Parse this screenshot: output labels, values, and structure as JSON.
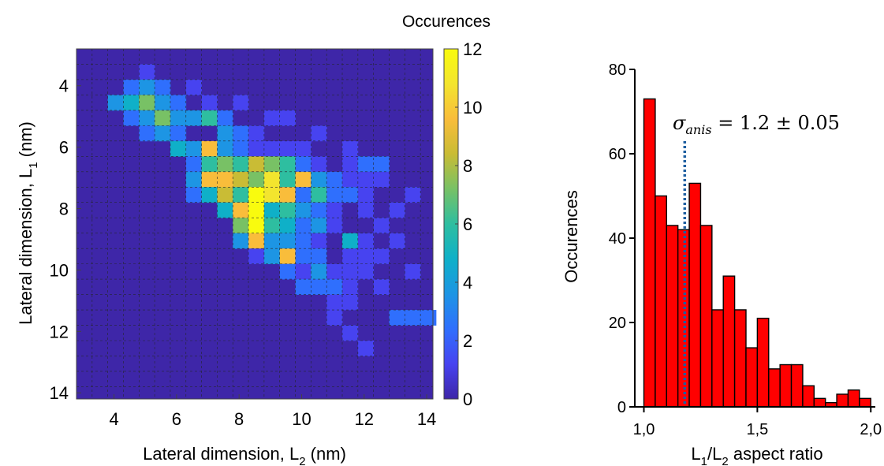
{
  "chart_data": [
    {
      "type": "heatmap",
      "xlabel": "Lateral dimension, L",
      "xlabel_sub": "2",
      "xlabel_unit": " (nm)",
      "ylabel": "Lateral dimension, L",
      "ylabel_sub": "1",
      "ylabel_unit": " (nm)",
      "xlim": [
        2.8,
        14.2
      ],
      "ylim": [
        2.8,
        14.2
      ],
      "y_inverted": true,
      "grid": true,
      "bin_width": 0.5,
      "bin_start": 2.8,
      "xticks": [
        4,
        6,
        8,
        10,
        12,
        14
      ],
      "yticks": [
        4,
        6,
        8,
        10,
        12,
        14
      ],
      "colorbar": {
        "title": "Occurences",
        "range": [
          0,
          12
        ],
        "ticks": [
          0,
          2,
          4,
          6,
          8,
          10,
          12
        ],
        "colormap": [
          "#3e26a8",
          "#4743f0",
          "#2f6ffd",
          "#1d95e4",
          "#0fb0c8",
          "#2ebea0",
          "#78c165",
          "#c9bc35",
          "#f9bd3b",
          "#f3e52e",
          "#f9fb0e"
        ]
      },
      "background_value": 0,
      "cells": [
        {
          "x": 4.8,
          "y": 3.3,
          "v": 1
        },
        {
          "x": 4.3,
          "y": 3.8,
          "v": 2
        },
        {
          "x": 4.8,
          "y": 3.8,
          "v": 3
        },
        {
          "x": 5.3,
          "y": 3.8,
          "v": 2
        },
        {
          "x": 6.3,
          "y": 3.8,
          "v": 1
        },
        {
          "x": 3.8,
          "y": 4.3,
          "v": 3
        },
        {
          "x": 4.3,
          "y": 4.3,
          "v": 5
        },
        {
          "x": 4.8,
          "y": 4.3,
          "v": 7
        },
        {
          "x": 5.3,
          "y": 4.3,
          "v": 4
        },
        {
          "x": 5.8,
          "y": 4.3,
          "v": 2
        },
        {
          "x": 6.8,
          "y": 4.3,
          "v": 1
        },
        {
          "x": 7.8,
          "y": 4.3,
          "v": 1
        },
        {
          "x": 4.3,
          "y": 4.8,
          "v": 2
        },
        {
          "x": 4.8,
          "y": 4.8,
          "v": 4
        },
        {
          "x": 5.3,
          "y": 4.8,
          "v": 7
        },
        {
          "x": 5.8,
          "y": 4.8,
          "v": 3
        },
        {
          "x": 6.3,
          "y": 4.8,
          "v": 4
        },
        {
          "x": 6.8,
          "y": 4.8,
          "v": 6
        },
        {
          "x": 7.3,
          "y": 4.8,
          "v": 2
        },
        {
          "x": 8.8,
          "y": 4.8,
          "v": 1
        },
        {
          "x": 9.3,
          "y": 4.8,
          "v": 1
        },
        {
          "x": 4.8,
          "y": 5.3,
          "v": 2
        },
        {
          "x": 5.3,
          "y": 5.3,
          "v": 3
        },
        {
          "x": 5.8,
          "y": 5.3,
          "v": 2
        },
        {
          "x": 7.3,
          "y": 5.3,
          "v": 3
        },
        {
          "x": 7.8,
          "y": 5.3,
          "v": 2
        },
        {
          "x": 8.3,
          "y": 5.3,
          "v": 1
        },
        {
          "x": 10.3,
          "y": 5.3,
          "v": 1
        },
        {
          "x": 5.8,
          "y": 5.8,
          "v": 5
        },
        {
          "x": 6.3,
          "y": 5.8,
          "v": 3
        },
        {
          "x": 6.8,
          "y": 5.8,
          "v": 9
        },
        {
          "x": 7.3,
          "y": 5.8,
          "v": 3
        },
        {
          "x": 7.8,
          "y": 5.8,
          "v": 2
        },
        {
          "x": 8.3,
          "y": 5.8,
          "v": 1
        },
        {
          "x": 8.8,
          "y": 5.8,
          "v": 1
        },
        {
          "x": 9.3,
          "y": 5.8,
          "v": 1
        },
        {
          "x": 9.8,
          "y": 5.8,
          "v": 1
        },
        {
          "x": 11.3,
          "y": 5.8,
          "v": 1
        },
        {
          "x": 6.3,
          "y": 6.3,
          "v": 2
        },
        {
          "x": 6.8,
          "y": 6.3,
          "v": 6
        },
        {
          "x": 7.3,
          "y": 6.3,
          "v": 7
        },
        {
          "x": 7.8,
          "y": 6.3,
          "v": 6
        },
        {
          "x": 8.3,
          "y": 6.3,
          "v": 8
        },
        {
          "x": 8.8,
          "y": 6.3,
          "v": 7
        },
        {
          "x": 9.3,
          "y": 6.3,
          "v": 6
        },
        {
          "x": 9.8,
          "y": 6.3,
          "v": 2
        },
        {
          "x": 10.3,
          "y": 6.3,
          "v": 1
        },
        {
          "x": 11.3,
          "y": 6.3,
          "v": 1
        },
        {
          "x": 11.8,
          "y": 6.3,
          "v": 2
        },
        {
          "x": 12.3,
          "y": 6.3,
          "v": 2
        },
        {
          "x": 6.3,
          "y": 6.8,
          "v": 3
        },
        {
          "x": 6.8,
          "y": 6.8,
          "v": 10
        },
        {
          "x": 7.3,
          "y": 6.8,
          "v": 9
        },
        {
          "x": 7.8,
          "y": 6.8,
          "v": 8
        },
        {
          "x": 8.3,
          "y": 6.8,
          "v": 7
        },
        {
          "x": 8.8,
          "y": 6.8,
          "v": 11
        },
        {
          "x": 9.3,
          "y": 6.8,
          "v": 6
        },
        {
          "x": 9.8,
          "y": 6.8,
          "v": 10
        },
        {
          "x": 10.3,
          "y": 6.8,
          "v": 4
        },
        {
          "x": 10.8,
          "y": 6.8,
          "v": 2
        },
        {
          "x": 11.3,
          "y": 6.8,
          "v": 1
        },
        {
          "x": 11.8,
          "y": 6.8,
          "v": 1
        },
        {
          "x": 12.3,
          "y": 6.8,
          "v": 1
        },
        {
          "x": 6.3,
          "y": 7.3,
          "v": 2
        },
        {
          "x": 6.8,
          "y": 7.3,
          "v": 5
        },
        {
          "x": 7.3,
          "y": 7.3,
          "v": 8
        },
        {
          "x": 7.8,
          "y": 7.3,
          "v": 6
        },
        {
          "x": 8.3,
          "y": 7.3,
          "v": 12
        },
        {
          "x": 8.8,
          "y": 7.3,
          "v": 11
        },
        {
          "x": 9.3,
          "y": 7.3,
          "v": 9
        },
        {
          "x": 9.8,
          "y": 7.3,
          "v": 2
        },
        {
          "x": 10.3,
          "y": 7.3,
          "v": 6
        },
        {
          "x": 10.8,
          "y": 7.3,
          "v": 2
        },
        {
          "x": 11.3,
          "y": 7.3,
          "v": 2
        },
        {
          "x": 11.8,
          "y": 7.3,
          "v": 1
        },
        {
          "x": 13.3,
          "y": 7.3,
          "v": 1
        },
        {
          "x": 7.3,
          "y": 7.8,
          "v": 5
        },
        {
          "x": 7.8,
          "y": 7.8,
          "v": 9
        },
        {
          "x": 8.3,
          "y": 7.8,
          "v": 12
        },
        {
          "x": 8.8,
          "y": 7.8,
          "v": 5
        },
        {
          "x": 9.3,
          "y": 7.8,
          "v": 6
        },
        {
          "x": 9.8,
          "y": 7.8,
          "v": 3
        },
        {
          "x": 10.3,
          "y": 7.8,
          "v": 2
        },
        {
          "x": 10.8,
          "y": 7.8,
          "v": 1
        },
        {
          "x": 11.8,
          "y": 7.8,
          "v": 1
        },
        {
          "x": 12.8,
          "y": 7.8,
          "v": 1
        },
        {
          "x": 7.8,
          "y": 8.3,
          "v": 7
        },
        {
          "x": 8.3,
          "y": 8.3,
          "v": 12
        },
        {
          "x": 8.8,
          "y": 8.3,
          "v": 6
        },
        {
          "x": 9.3,
          "y": 8.3,
          "v": 5
        },
        {
          "x": 9.8,
          "y": 8.3,
          "v": 2
        },
        {
          "x": 10.3,
          "y": 8.3,
          "v": 3
        },
        {
          "x": 10.8,
          "y": 8.3,
          "v": 1
        },
        {
          "x": 12.3,
          "y": 8.3,
          "v": 1
        },
        {
          "x": 7.8,
          "y": 8.8,
          "v": 3
        },
        {
          "x": 8.3,
          "y": 8.8,
          "v": 10
        },
        {
          "x": 8.8,
          "y": 8.8,
          "v": 4
        },
        {
          "x": 9.3,
          "y": 8.8,
          "v": 3
        },
        {
          "x": 9.8,
          "y": 8.8,
          "v": 2
        },
        {
          "x": 10.3,
          "y": 8.8,
          "v": 1
        },
        {
          "x": 11.3,
          "y": 8.8,
          "v": 5
        },
        {
          "x": 11.8,
          "y": 8.8,
          "v": 1
        },
        {
          "x": 12.8,
          "y": 8.8,
          "v": 1
        },
        {
          "x": 8.3,
          "y": 9.3,
          "v": 1
        },
        {
          "x": 8.8,
          "y": 9.3,
          "v": 3
        },
        {
          "x": 9.3,
          "y": 9.3,
          "v": 9
        },
        {
          "x": 9.8,
          "y": 9.3,
          "v": 2
        },
        {
          "x": 10.3,
          "y": 9.3,
          "v": 2
        },
        {
          "x": 11.3,
          "y": 9.3,
          "v": 1
        },
        {
          "x": 11.8,
          "y": 9.3,
          "v": 1
        },
        {
          "x": 12.3,
          "y": 9.3,
          "v": 1
        },
        {
          "x": 9.3,
          "y": 9.8,
          "v": 2
        },
        {
          "x": 9.8,
          "y": 9.8,
          "v": 1
        },
        {
          "x": 10.3,
          "y": 9.8,
          "v": 3
        },
        {
          "x": 10.8,
          "y": 9.8,
          "v": 1
        },
        {
          "x": 11.3,
          "y": 9.8,
          "v": 1
        },
        {
          "x": 11.8,
          "y": 9.8,
          "v": 1
        },
        {
          "x": 13.3,
          "y": 9.8,
          "v": 1
        },
        {
          "x": 9.8,
          "y": 10.3,
          "v": 2
        },
        {
          "x": 10.3,
          "y": 10.3,
          "v": 2
        },
        {
          "x": 10.8,
          "y": 10.3,
          "v": 2
        },
        {
          "x": 11.3,
          "y": 10.3,
          "v": 1
        },
        {
          "x": 12.3,
          "y": 10.3,
          "v": 1
        },
        {
          "x": 10.8,
          "y": 10.8,
          "v": 1
        },
        {
          "x": 11.3,
          "y": 10.8,
          "v": 1
        },
        {
          "x": 10.8,
          "y": 11.3,
          "v": 1
        },
        {
          "x": 12.8,
          "y": 11.3,
          "v": 2
        },
        {
          "x": 13.3,
          "y": 11.3,
          "v": 2
        },
        {
          "x": 13.8,
          "y": 11.3,
          "v": 2
        },
        {
          "x": 11.3,
          "y": 11.8,
          "v": 1
        },
        {
          "x": 11.8,
          "y": 12.3,
          "v": 1
        }
      ]
    },
    {
      "type": "bar",
      "subtype": "histogram",
      "ylabel": "Occurences",
      "xlabel": "L",
      "xlabel_sub1": "1",
      "xlabel_mid": "/L",
      "xlabel_sub2": "2",
      "xlabel_tail": " aspect ratio",
      "xlim": [
        0.96,
        2.02
      ],
      "ylim": [
        0,
        80
      ],
      "xticks": [
        "1,0",
        "1,5",
        "2,0"
      ],
      "xtick_values": [
        1.0,
        1.5,
        2.0
      ],
      "yticks": [
        0,
        20,
        40,
        60,
        80
      ],
      "bar_color": "#ff0000",
      "bin_edges": [
        1.0,
        1.05,
        1.1,
        1.15,
        1.2,
        1.25,
        1.3,
        1.35,
        1.4,
        1.45,
        1.5,
        1.55,
        1.6,
        1.65,
        1.7,
        1.75,
        1.8,
        1.85,
        1.9,
        1.95,
        2.0
      ],
      "values": [
        73,
        50,
        43,
        42,
        53,
        43,
        23,
        31,
        23,
        14,
        21,
        9,
        10,
        10,
        5,
        2,
        1,
        3,
        4,
        2
      ],
      "mean_line": {
        "x": 1.18,
        "color": "#1f5fa0"
      },
      "annotation": {
        "symbol": "σ",
        "sub": "anis",
        "text": " = 1.2  ± 0.05"
      }
    }
  ]
}
